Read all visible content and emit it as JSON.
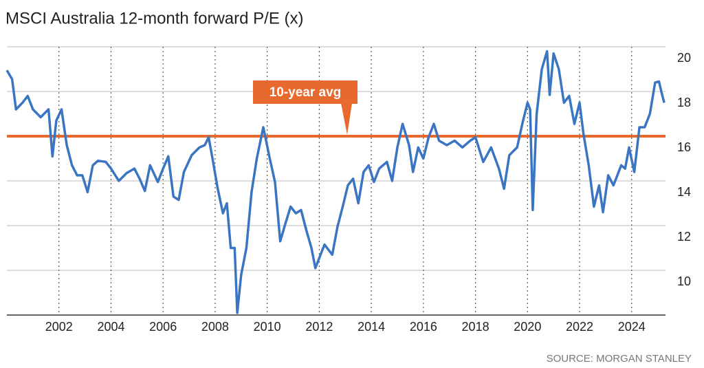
{
  "chart_data": {
    "type": "line",
    "title": "MSCI Australia 12-month forward P/E (x)",
    "source": "SOURCE: MORGAN STANLEY",
    "annotation": "10-year avg",
    "reference_line": {
      "value": 16,
      "color": "#e8692d"
    },
    "xlim": [
      2000,
      2025.3
    ],
    "xticks": [
      2002,
      2004,
      2006,
      2008,
      2010,
      2012,
      2014,
      2016,
      2018,
      2020,
      2022,
      2024
    ],
    "ylim": [
      8,
      20
    ],
    "yticks": [
      10,
      12,
      14,
      16,
      18,
      20
    ],
    "grid": true,
    "series": [
      {
        "color": "#3a75c4",
        "x": [
          2000.0,
          2000.2,
          2000.35,
          2000.6,
          2000.8,
          2001.0,
          2001.3,
          2001.6,
          2001.75,
          2001.9,
          2002.1,
          2002.3,
          2002.5,
          2002.7,
          2002.9,
          2003.1,
          2003.3,
          2003.5,
          2003.8,
          2004.0,
          2004.3,
          2004.6,
          2004.9,
          2005.1,
          2005.3,
          2005.5,
          2005.8,
          2006.0,
          2006.2,
          2006.4,
          2006.6,
          2006.8,
          2007.1,
          2007.4,
          2007.6,
          2007.75,
          2007.9,
          2008.1,
          2008.3,
          2008.45,
          2008.6,
          2008.75,
          2008.85,
          2009.0,
          2009.2,
          2009.4,
          2009.6,
          2009.85,
          2010.1,
          2010.3,
          2010.5,
          2010.7,
          2010.9,
          2011.1,
          2011.3,
          2011.5,
          2011.7,
          2011.85,
          2012.0,
          2012.2,
          2012.5,
          2012.7,
          2012.9,
          2013.1,
          2013.3,
          2013.5,
          2013.7,
          2013.9,
          2014.1,
          2014.3,
          2014.6,
          2014.8,
          2015.0,
          2015.2,
          2015.45,
          2015.6,
          2015.8,
          2016.0,
          2016.2,
          2016.4,
          2016.6,
          2016.9,
          2017.2,
          2017.5,
          2017.8,
          2018.0,
          2018.3,
          2018.6,
          2018.9,
          2019.1,
          2019.3,
          2019.6,
          2019.8,
          2020.0,
          2020.1,
          2020.2,
          2020.35,
          2020.55,
          2020.75,
          2020.85,
          2021.0,
          2021.2,
          2021.4,
          2021.6,
          2021.8,
          2022.0,
          2022.15,
          2022.35,
          2022.55,
          2022.75,
          2022.9,
          2023.1,
          2023.3,
          2023.6,
          2023.75,
          2023.9,
          2024.1,
          2024.3,
          2024.5,
          2024.7,
          2024.9,
          2025.05,
          2025.15,
          2025.25
        ],
        "values": [
          18.95,
          18.55,
          17.2,
          17.5,
          17.8,
          17.2,
          16.85,
          17.2,
          15.1,
          16.7,
          17.2,
          15.6,
          14.7,
          14.25,
          14.25,
          13.5,
          14.7,
          14.9,
          14.85,
          14.55,
          14.0,
          14.35,
          14.55,
          14.1,
          13.55,
          14.7,
          13.95,
          14.55,
          15.1,
          13.3,
          13.15,
          14.4,
          15.15,
          15.5,
          15.6,
          15.95,
          15.0,
          13.65,
          12.55,
          13.0,
          11.0,
          11.0,
          8.1,
          9.8,
          11.0,
          13.5,
          15.0,
          16.4,
          15.0,
          13.95,
          11.3,
          12.1,
          12.85,
          12.55,
          12.7,
          11.8,
          11.0,
          10.1,
          10.55,
          11.15,
          10.7,
          11.95,
          12.85,
          13.8,
          14.1,
          13.0,
          14.4,
          14.7,
          13.95,
          14.55,
          14.85,
          14.0,
          15.5,
          16.55,
          15.6,
          14.4,
          15.5,
          15.0,
          15.95,
          16.55,
          15.8,
          15.6,
          15.8,
          15.5,
          15.8,
          15.95,
          14.85,
          15.5,
          14.55,
          13.65,
          15.15,
          15.5,
          16.55,
          17.5,
          17.2,
          12.7,
          17.0,
          19.0,
          19.8,
          17.85,
          19.7,
          19.0,
          17.5,
          17.8,
          16.55,
          17.5,
          16.1,
          14.7,
          12.85,
          13.8,
          12.6,
          14.25,
          13.8,
          14.7,
          14.55,
          15.5,
          14.4,
          16.4,
          16.4,
          17.0,
          18.4,
          18.45,
          17.95,
          17.5
        ]
      }
    ]
  }
}
